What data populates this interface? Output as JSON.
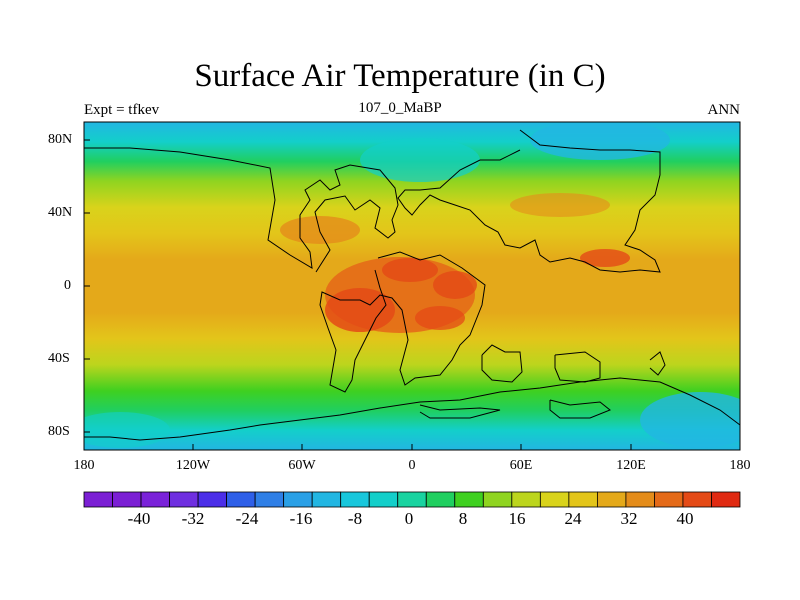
{
  "title": "Surface Air Temperature (in C)",
  "subtitle_left": "Expt = tfkev",
  "subtitle_center": "107_0_MaBP",
  "subtitle_right": "ANN",
  "x_ticks": [
    "180",
    "120W",
    "60W",
    "0",
    "60E",
    "120E",
    "180"
  ],
  "y_ticks": [
    "80N",
    "40N",
    "0",
    "40S",
    "80S"
  ],
  "colorbar": {
    "labels": [
      "-40",
      "-32",
      "-24",
      "-16",
      "-8",
      "0",
      "8",
      "16",
      "24",
      "32",
      "40"
    ],
    "colors": [
      "#7b1fd4",
      "#7b1fd4",
      "#7a22d9",
      "#6f2fe0",
      "#4b2ee8",
      "#2e5fe8",
      "#2f7fe6",
      "#2aa0e6",
      "#22b6e2",
      "#18c7dc",
      "#13cfca",
      "#19d3a0",
      "#20cf60",
      "#3fd020",
      "#8fd420",
      "#bcd51d",
      "#d9d31b",
      "#e3c51a",
      "#e4a91a",
      "#e48c1a",
      "#e46a18",
      "#e44a16",
      "#e02a12"
    ]
  },
  "map_data": {
    "type": "filled-contour-map",
    "variable": "Surface Air Temperature",
    "units": "C",
    "lon_range": [
      -180,
      180
    ],
    "lat_range": [
      -90,
      90
    ]
  }
}
